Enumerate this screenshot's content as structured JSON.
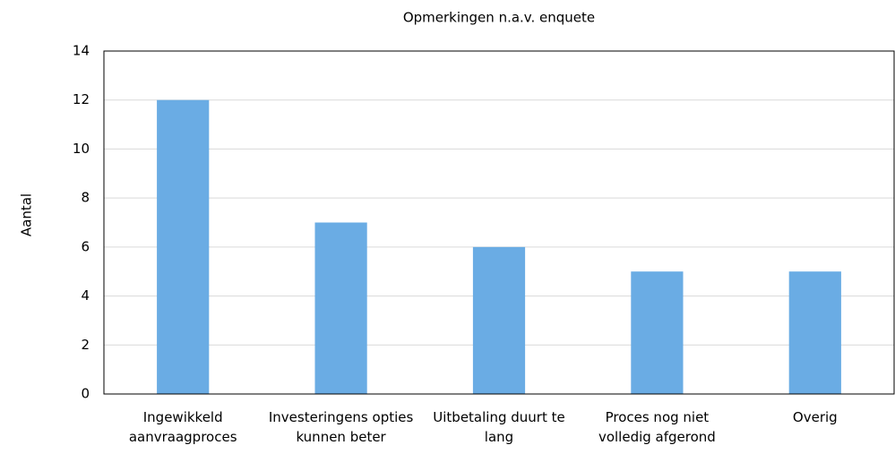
{
  "chart_data": {
    "type": "bar",
    "title": "Opmerkingen n.a.v. enquete",
    "y_label": "Aantal",
    "categories": [
      "Ingewikkeld aanvraagproces",
      "Investeringens opties kunnen beter",
      "Uitbetaling duurt te lang",
      "Proces nog niet volledig afgerond",
      "Overig"
    ],
    "values": [
      12,
      7,
      6,
      5,
      5
    ],
    "color": "#6aace4",
    "ylim": [
      0,
      14
    ],
    "yticks": [
      0,
      2,
      4,
      6,
      8,
      10,
      12,
      14
    ],
    "grid": true
  }
}
